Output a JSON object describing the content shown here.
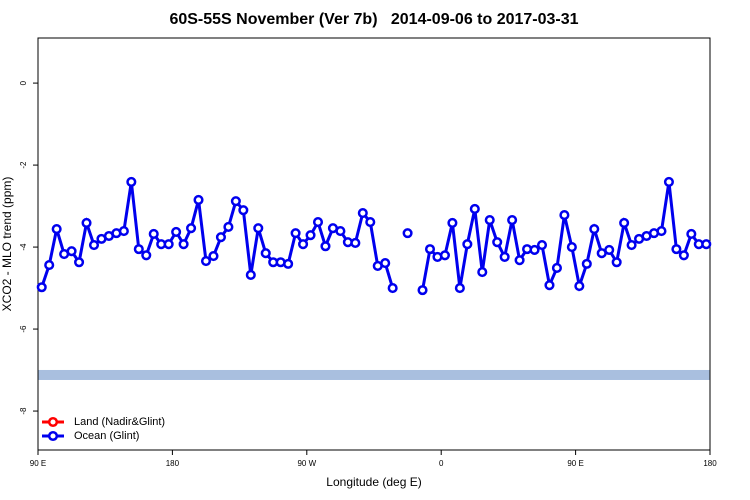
{
  "chart_data": {
    "type": "line",
    "title": "60S-55S November (Ver 7b)   2014-09-06 to 2017-03-31",
    "xlabel": "Longitude (deg E)",
    "ylabel": "XCO2 - MLO trend (ppm)",
    "xlim": [
      90,
      540
    ],
    "ylim": [
      -8.95,
      1.1
    ],
    "xticks": [
      {
        "value": 90,
        "label": "90 E"
      },
      180,
      {
        "value": 270,
        "label": "90 W"
      },
      {
        "value": 360,
        "label": "0"
      },
      {
        "value": 450,
        "label": "90 E"
      },
      {
        "value": 540,
        "label": "180"
      }
    ],
    "yticks": [
      0,
      -2,
      -4,
      -6,
      -8
    ],
    "band": {
      "y": -7.12,
      "color": "#a9bfdf"
    },
    "legend": "bottom-left",
    "x": [
      92.5,
      97.5,
      102.5,
      107.5,
      112.5,
      117.5,
      122.5,
      127.5,
      132.5,
      137.5,
      142.5,
      147.5,
      152.5,
      157.5,
      162.5,
      167.5,
      172.5,
      177.5,
      182.5,
      187.5,
      192.5,
      197.5,
      202.5,
      207.5,
      212.5,
      217.5,
      222.5,
      227.5,
      232.5,
      237.5,
      242.5,
      247.5,
      252.5,
      257.5,
      262.5,
      267.5,
      272.5,
      277.5,
      282.5,
      287.5,
      292.5,
      297.5,
      302.5,
      307.5,
      312.5,
      317.5,
      322.5,
      327.5,
      332.5,
      337.5,
      342.5,
      347.5,
      352.5,
      357.5,
      362.5,
      367.5,
      372.5,
      377.5,
      382.5,
      387.5,
      392.5,
      397.5,
      402.5,
      407.5,
      412.5,
      417.5,
      422.5,
      427.5,
      432.5,
      437.5,
      442.5,
      447.5,
      452.5,
      457.5,
      462.5,
      467.5,
      472.5,
      477.5,
      482.5,
      487.5,
      492.5,
      497.5,
      502.5,
      507.5,
      512.5,
      517.5,
      522.5,
      527.5,
      532.5,
      537.5
    ],
    "series": [
      {
        "name": "Land (Nadir&Glint)",
        "color": "#ff0000",
        "values": [
          null,
          null,
          null,
          null,
          null,
          null,
          null,
          null,
          null,
          null,
          null,
          null,
          null,
          null,
          null,
          null,
          null,
          null,
          null,
          null,
          null,
          null,
          null,
          null,
          null,
          null,
          null,
          null,
          null,
          null,
          null,
          null,
          null,
          null,
          null,
          null,
          null,
          null,
          null,
          null,
          null,
          null,
          null,
          null,
          null,
          null,
          null,
          null,
          null,
          null,
          null,
          null,
          null,
          null,
          null,
          null,
          null,
          null,
          null,
          null,
          null,
          null,
          null,
          null,
          null,
          null,
          null,
          null,
          null,
          null,
          null,
          null,
          null,
          null,
          null,
          null,
          null,
          null,
          null,
          null,
          null,
          null,
          null,
          null,
          null,
          null,
          null,
          null,
          null,
          null
        ]
      },
      {
        "name": "Ocean (Glint)",
        "color": "#0000ee",
        "values": [
          -4.98,
          -4.44,
          -3.56,
          -4.17,
          -4.1,
          -4.37,
          -3.41,
          -3.95,
          -3.8,
          -3.73,
          -3.66,
          -3.61,
          -2.41,
          -4.05,
          -4.2,
          -3.68,
          -3.93,
          -3.93,
          -3.63,
          -3.93,
          -3.54,
          -2.85,
          -4.34,
          -4.22,
          -3.76,
          -3.51,
          -2.88,
          -3.1,
          -4.68,
          -3.54,
          -4.15,
          -4.37,
          -4.37,
          -4.41,
          -3.66,
          -3.93,
          -3.71,
          -3.39,
          -3.98,
          -3.54,
          -3.61,
          -3.88,
          -3.9,
          -3.17,
          -3.39,
          -4.46,
          -4.39,
          -5.0,
          null,
          -3.66,
          null,
          -5.05,
          -4.05,
          -4.24,
          -4.2,
          -3.41,
          -5.0,
          -3.93,
          -3.07,
          -4.61,
          -3.34,
          -3.88,
          -4.24,
          -3.34,
          -4.32,
          -4.05,
          -4.07,
          -3.95,
          -4.93,
          -4.51,
          -3.22,
          -4.0,
          -4.95,
          -4.41,
          -3.56,
          -4.15,
          -4.07,
          -4.37,
          -3.41,
          -3.95,
          -3.8,
          -3.73,
          -3.66,
          -3.61,
          -2.41,
          -4.05,
          -4.2,
          -3.68,
          -3.93,
          -3.93
        ]
      }
    ]
  }
}
